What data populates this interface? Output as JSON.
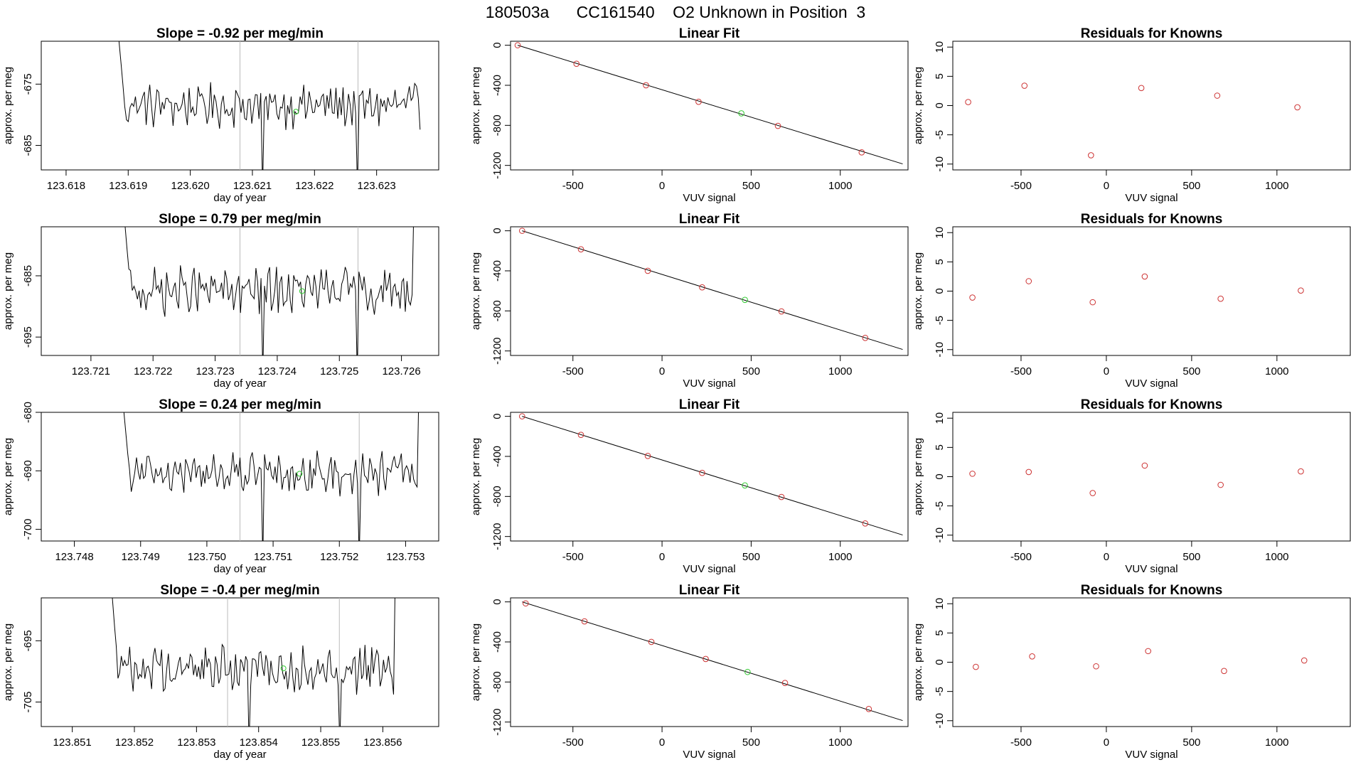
{
  "title": "180503a      CC161540    O2 Unknown in Position  3",
  "colors": {
    "known": "#cd3333",
    "unknown": "#33cc33",
    "line": "#000000",
    "vline": "#bbbbbb"
  },
  "chart_data": [
    {
      "type": "line",
      "row": 1,
      "panel": "timeseries",
      "title": "Slope =  -0.92  per meg/min",
      "xlabel": "day of year",
      "ylabel": "approx. per meg",
      "xlim": [
        123.6176,
        123.624
      ],
      "ylim": [
        -689,
        -668
      ],
      "xticks": [
        123.618,
        123.619,
        123.62,
        123.621,
        123.622,
        123.623
      ],
      "xtick_labels": [
        "123.618",
        "123.619",
        "123.620",
        "123.621",
        "123.622",
        "123.623"
      ],
      "yticks": [
        -675,
        -685
      ],
      "ytick_labels": [
        "-675",
        "-685"
      ],
      "start": 123.6188,
      "end": 123.6237,
      "center": -678.5,
      "amp": 2.8,
      "vlines": [
        123.6208,
        123.6227
      ],
      "unknown_point": [
        123.6217,
        -679.5
      ]
    },
    {
      "type": "scatter",
      "row": 1,
      "panel": "linear_fit",
      "title": "Linear Fit",
      "xlabel": "VUV signal",
      "ylabel": "approx. per meg",
      "xlim": [
        -850,
        1380
      ],
      "ylim": [
        -1245,
        40
      ],
      "xticks": [
        -500,
        0,
        500,
        1000
      ],
      "xtick_labels": [
        "-500",
        "0",
        "500",
        "1000"
      ],
      "yticks": [
        0,
        -400,
        -800,
        -1200
      ],
      "ytick_labels": [
        "0",
        "-400",
        "-800",
        "-1200"
      ],
      "fit_line": [
        [
          -810,
          0
        ],
        [
          1350,
          -1185
        ]
      ],
      "knowns": [
        [
          -810,
          0
        ],
        [
          -480,
          -185
        ],
        [
          -90,
          -400
        ],
        [
          205,
          -565
        ],
        [
          650,
          -805
        ],
        [
          1120,
          -1070
        ]
      ],
      "unknown": [
        [
          445,
          -680
        ]
      ]
    },
    {
      "type": "scatter",
      "row": 1,
      "panel": "residuals",
      "title": "Residuals for Knowns",
      "xlabel": "VUV signal",
      "ylabel": "approx. per meg",
      "xlim": [
        -900,
        1430
      ],
      "ylim": [
        -11,
        11
      ],
      "xticks": [
        -500,
        0,
        500,
        1000
      ],
      "xtick_labels": [
        "-500",
        "0",
        "500",
        "1000"
      ],
      "yticks": [
        10,
        5,
        0,
        -5,
        -10
      ],
      "ytick_labels": [
        "10",
        "5",
        "0",
        "-5",
        "-10"
      ],
      "knowns": [
        [
          -810,
          0.6
        ],
        [
          -480,
          3.4
        ],
        [
          -90,
          -8.5
        ],
        [
          205,
          3.0
        ],
        [
          650,
          1.7
        ],
        [
          1120,
          -0.3
        ]
      ]
    },
    {
      "type": "line",
      "row": 2,
      "panel": "timeseries",
      "title": "Slope =  0.79  per meg/min",
      "xlabel": "day of year",
      "ylabel": "approx. per meg",
      "xlim": [
        123.7202,
        123.7266
      ],
      "ylim": [
        -698,
        -677
      ],
      "xticks": [
        123.721,
        123.722,
        123.723,
        123.724,
        123.725,
        123.726
      ],
      "xtick_labels": [
        "123.721",
        "123.722",
        "123.723",
        "123.724",
        "123.725",
        "123.726"
      ],
      "yticks": [
        -685,
        -695
      ],
      "ytick_labels": [
        "-685",
        "-695"
      ],
      "start": 123.7215,
      "end": 123.7262,
      "center": -687.5,
      "amp": 3.0,
      "vlines": [
        123.7234,
        123.7253
      ],
      "unknown_point": [
        123.7244,
        -687.5
      ]
    },
    {
      "type": "scatter",
      "row": 2,
      "panel": "linear_fit",
      "title": "Linear Fit",
      "xlabel": "VUV signal",
      "ylabel": "approx. per meg",
      "xlim": [
        -850,
        1380
      ],
      "ylim": [
        -1245,
        40
      ],
      "xticks": [
        -500,
        0,
        500,
        1000
      ],
      "xtick_labels": [
        "-500",
        "0",
        "500",
        "1000"
      ],
      "yticks": [
        0,
        -400,
        -800,
        -1200
      ],
      "ytick_labels": [
        "0",
        "-400",
        "-800",
        "-1200"
      ],
      "fit_line": [
        [
          -785,
          0
        ],
        [
          1350,
          -1185
        ]
      ],
      "knowns": [
        [
          -785,
          0
        ],
        [
          -455,
          -185
        ],
        [
          -80,
          -400
        ],
        [
          225,
          -565
        ],
        [
          670,
          -805
        ],
        [
          1140,
          -1070
        ]
      ],
      "unknown": [
        [
          465,
          -690
        ]
      ]
    },
    {
      "type": "scatter",
      "row": 2,
      "panel": "residuals",
      "title": "Residuals for Knowns",
      "xlabel": "VUV signal",
      "ylabel": "approx. per meg",
      "xlim": [
        -900,
        1430
      ],
      "ylim": [
        -11,
        11
      ],
      "xticks": [
        -500,
        0,
        500,
        1000
      ],
      "xtick_labels": [
        "-500",
        "0",
        "500",
        "1000"
      ],
      "yticks": [
        10,
        5,
        0,
        -5,
        -10
      ],
      "ytick_labels": [
        "10",
        "5",
        "0",
        "-5",
        "-10"
      ],
      "knowns": [
        [
          -785,
          -1.1
        ],
        [
          -455,
          1.7
        ],
        [
          -80,
          -1.9
        ],
        [
          225,
          2.5
        ],
        [
          670,
          -1.3
        ],
        [
          1140,
          0.1
        ]
      ]
    },
    {
      "type": "line",
      "row": 3,
      "panel": "timeseries",
      "title": "Slope =  0.24  per meg/min",
      "xlabel": "day of year",
      "ylabel": "approx. per meg",
      "xlim": [
        123.7475,
        123.7535
      ],
      "ylim": [
        -702,
        -680
      ],
      "xticks": [
        123.748,
        123.749,
        123.75,
        123.751,
        123.752,
        123.753
      ],
      "xtick_labels": [
        "123.748",
        "123.749",
        "123.750",
        "123.751",
        "123.752",
        "123.753"
      ],
      "yticks": [
        -680,
        -690,
        -700
      ],
      "ytick_labels": [
        "-680",
        "-690",
        "-700"
      ],
      "start": 123.7487,
      "end": 123.7532,
      "center": -690.5,
      "amp": 2.8,
      "vlines": [
        123.7505,
        123.7523
      ],
      "unknown_point": [
        123.7514,
        -690.5
      ]
    },
    {
      "type": "scatter",
      "row": 3,
      "panel": "linear_fit",
      "title": "Linear Fit",
      "xlabel": "VUV signal",
      "ylabel": "approx. per meg",
      "xlim": [
        -850,
        1380
      ],
      "ylim": [
        -1245,
        40
      ],
      "xticks": [
        -500,
        0,
        500,
        1000
      ],
      "xtick_labels": [
        "-500",
        "0",
        "500",
        "1000"
      ],
      "yticks": [
        0,
        -400,
        -800,
        -1200
      ],
      "ytick_labels": [
        "0",
        "-400",
        "-800",
        "-1200"
      ],
      "fit_line": [
        [
          -785,
          0
        ],
        [
          1350,
          -1185
        ]
      ],
      "knowns": [
        [
          -785,
          0
        ],
        [
          -455,
          -185
        ],
        [
          -80,
          -395
        ],
        [
          225,
          -565
        ],
        [
          670,
          -805
        ],
        [
          1140,
          -1070
        ]
      ],
      "unknown": [
        [
          465,
          -690
        ]
      ]
    },
    {
      "type": "scatter",
      "row": 3,
      "panel": "residuals",
      "title": "Residuals for Knowns",
      "xlabel": "VUV signal",
      "ylabel": "approx. per meg",
      "xlim": [
        -900,
        1430
      ],
      "ylim": [
        -11,
        11
      ],
      "xticks": [
        -500,
        0,
        500,
        1000
      ],
      "xtick_labels": [
        "-500",
        "0",
        "500",
        "1000"
      ],
      "yticks": [
        10,
        5,
        0,
        -5,
        -10
      ],
      "ytick_labels": [
        "10",
        "5",
        "0",
        "-5",
        "-10"
      ],
      "knowns": [
        [
          -785,
          0.5
        ],
        [
          -455,
          0.8
        ],
        [
          -80,
          -2.8
        ],
        [
          225,
          1.9
        ],
        [
          670,
          -1.4
        ],
        [
          1140,
          0.9
        ]
      ]
    },
    {
      "type": "line",
      "row": 4,
      "panel": "timeseries",
      "title": "Slope =  -0.4  per meg/min",
      "xlabel": "day of year",
      "ylabel": "approx. per meg",
      "xlim": [
        123.8505,
        123.8569
      ],
      "ylim": [
        -709,
        -688
      ],
      "xticks": [
        123.851,
        123.852,
        123.853,
        123.854,
        123.855,
        123.856
      ],
      "xtick_labels": [
        "123.851",
        "123.852",
        "123.853",
        "123.854",
        "123.855",
        "123.856"
      ],
      "yticks": [
        -695,
        -705
      ],
      "ytick_labels": [
        "-695",
        "-705"
      ],
      "start": 123.8516,
      "end": 123.8562,
      "center": -699.5,
      "amp": 3.0,
      "vlines": [
        123.8535,
        123.8553
      ],
      "unknown_point": [
        123.8544,
        -699.5
      ]
    },
    {
      "type": "scatter",
      "row": 4,
      "panel": "linear_fit",
      "title": "Linear Fit",
      "xlabel": "VUV signal",
      "ylabel": "approx. per meg",
      "xlim": [
        -850,
        1380
      ],
      "ylim": [
        -1245,
        40
      ],
      "xticks": [
        -500,
        0,
        500,
        1000
      ],
      "xtick_labels": [
        "-500",
        "0",
        "500",
        "1000"
      ],
      "yticks": [
        0,
        -400,
        -800,
        -1200
      ],
      "ytick_labels": [
        "0",
        "-400",
        "-800",
        "-1200"
      ],
      "fit_line": [
        [
          -785,
          0
        ],
        [
          1350,
          -1185
        ]
      ],
      "knowns": [
        [
          -765,
          -15
        ],
        [
          -435,
          -195
        ],
        [
          -60,
          -400
        ],
        [
          245,
          -570
        ],
        [
          690,
          -810
        ],
        [
          1160,
          -1070
        ]
      ],
      "unknown": [
        [
          480,
          -700
        ]
      ]
    },
    {
      "type": "scatter",
      "row": 4,
      "panel": "residuals",
      "title": "Residuals for Knowns",
      "xlabel": "VUV signal",
      "ylabel": "approx. per meg",
      "xlim": [
        -900,
        1430
      ],
      "ylim": [
        -11,
        11
      ],
      "xticks": [
        -500,
        0,
        500,
        1000
      ],
      "xtick_labels": [
        "-500",
        "0",
        "500",
        "1000"
      ],
      "yticks": [
        10,
        5,
        0,
        -5,
        -10
      ],
      "ytick_labels": [
        "10",
        "5",
        "0",
        "-5",
        "-10"
      ],
      "knowns": [
        [
          -765,
          -0.8
        ],
        [
          -435,
          1.0
        ],
        [
          -60,
          -0.7
        ],
        [
          245,
          1.9
        ],
        [
          690,
          -1.5
        ],
        [
          1160,
          0.3
        ]
      ]
    }
  ]
}
